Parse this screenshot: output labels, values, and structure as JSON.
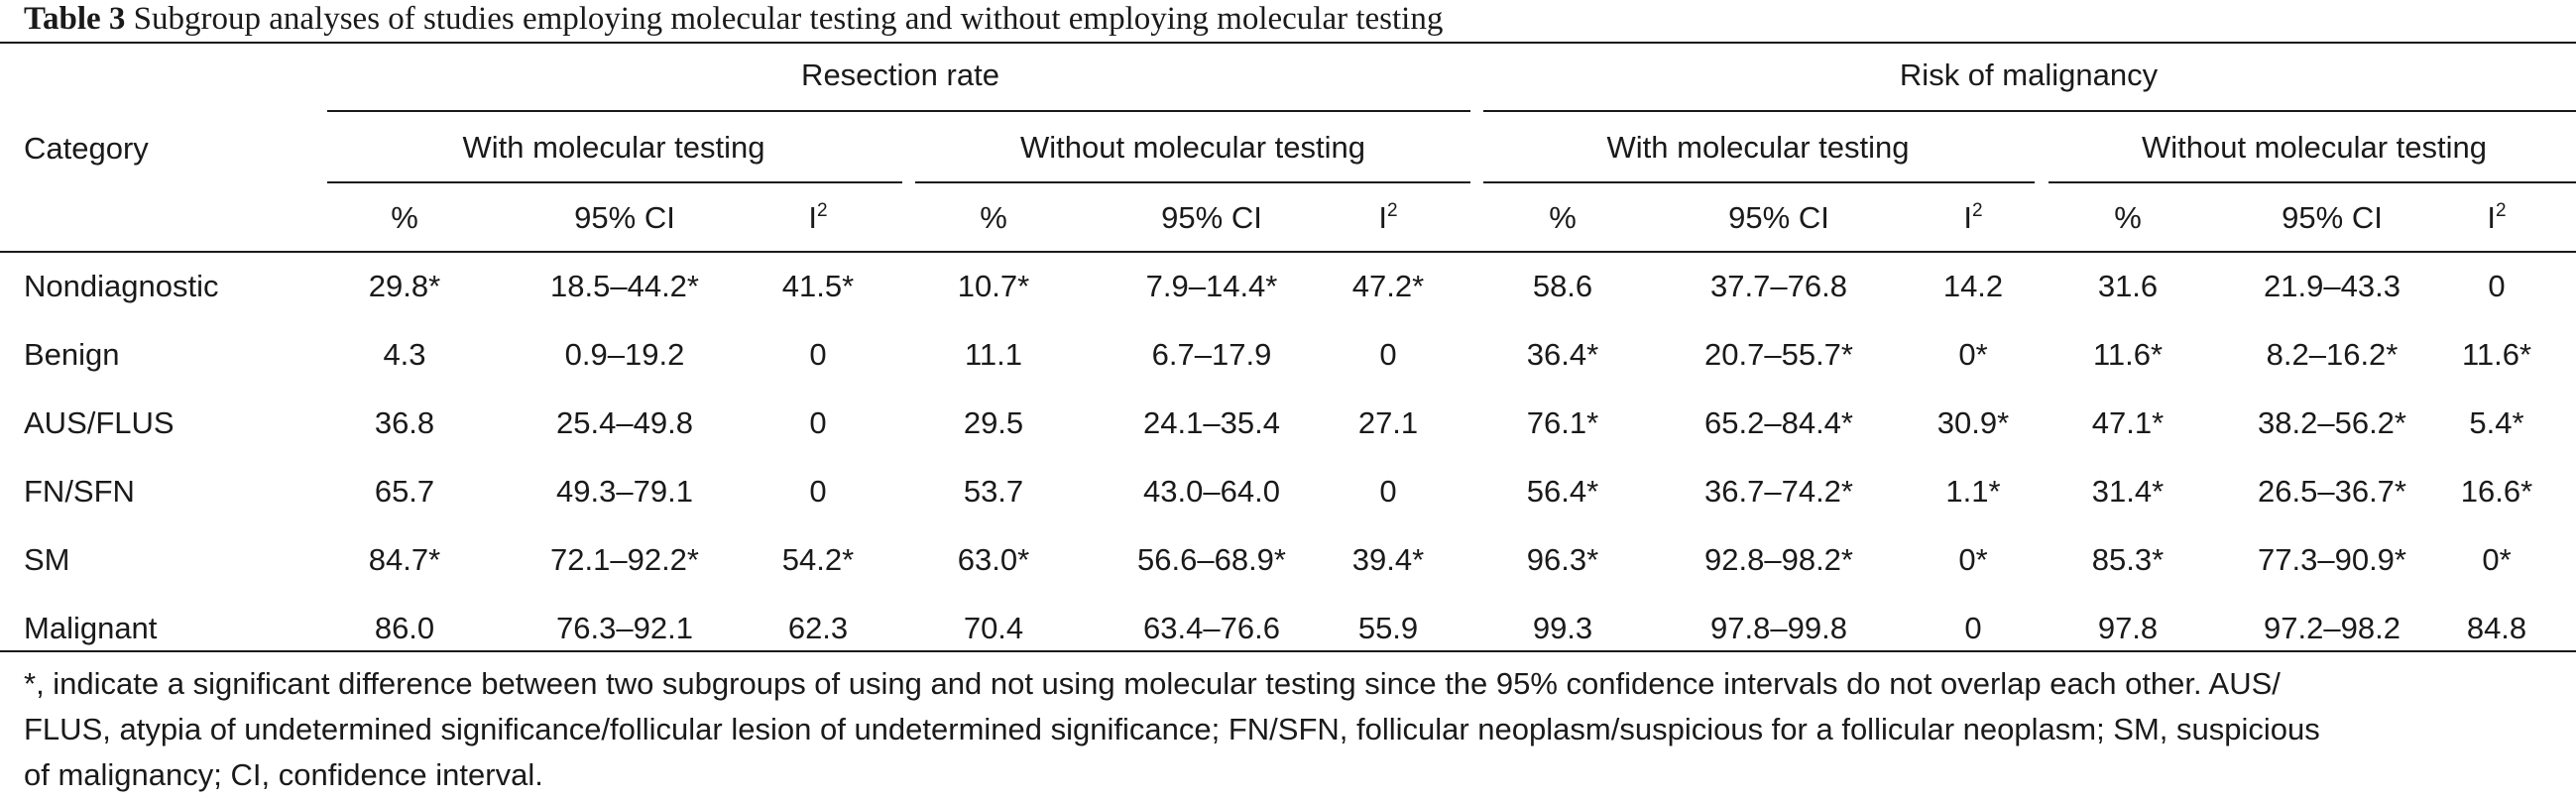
{
  "caption": {
    "label": "Table 3",
    "text": "Subgroup analyses of studies employing molecular testing and without employing molecular testing"
  },
  "header": {
    "category": "Category",
    "groups": [
      "Resection rate",
      "Risk of malignancy"
    ],
    "subgroups": [
      "With molecular testing",
      "Without molecular testing",
      "With molecular testing",
      "Without molecular testing"
    ],
    "cols": [
      "%",
      "95% CI",
      "I",
      "%",
      "95% CI",
      "I",
      "%",
      "95% CI",
      "I",
      "%",
      "95% CI",
      "I"
    ],
    "i_sup": "2"
  },
  "rows": [
    {
      "category": "Nondiagnostic",
      "cells": [
        "29.8*",
        "18.5–44.2*",
        "41.5*",
        "10.7*",
        "7.9–14.4*",
        "47.2*",
        "58.6",
        "37.7–76.8",
        "14.2",
        "31.6",
        "21.9–43.3",
        "0"
      ]
    },
    {
      "category": "Benign",
      "cells": [
        "4.3",
        "0.9–19.2",
        "0",
        "11.1",
        "6.7–17.9",
        "0",
        "36.4*",
        "20.7–55.7*",
        "0*",
        "11.6*",
        "8.2–16.2*",
        "11.6*"
      ]
    },
    {
      "category": "AUS/FLUS",
      "cells": [
        "36.8",
        "25.4–49.8",
        "0",
        "29.5",
        "24.1–35.4",
        "27.1",
        "76.1*",
        "65.2–84.4*",
        "30.9*",
        "47.1*",
        "38.2–56.2*",
        "5.4*"
      ]
    },
    {
      "category": "FN/SFN",
      "cells": [
        "65.7",
        "49.3–79.1",
        "0",
        "53.7",
        "43.0–64.0",
        "0",
        "56.4*",
        "36.7–74.2*",
        "1.1*",
        "31.4*",
        "26.5–36.7*",
        "16.6*"
      ]
    },
    {
      "category": "SM",
      "cells": [
        "84.7*",
        "72.1–92.2*",
        "54.2*",
        "63.0*",
        "56.6–68.9*",
        "39.4*",
        "96.3*",
        "92.8–98.2*",
        "0*",
        "85.3*",
        "77.3–90.9*",
        "0*"
      ]
    },
    {
      "category": "Malignant",
      "cells": [
        "86.0",
        "76.3–92.1",
        "62.3",
        "70.4",
        "63.4–76.6",
        "55.9",
        "99.3",
        "97.8–99.8",
        "0",
        "97.8",
        "97.2–98.2",
        "84.8"
      ]
    }
  ],
  "footnote": "*, indicate a significant difference between two subgroups of using and not using molecular testing since the 95% confidence intervals do not overlap each other. AUS/\nFLUS, atypia of undetermined significance/follicular lesion of undetermined significance; FN/SFN, follicular neoplasm/suspicious for a follicular neoplasm; SM, suspicious\nof malignancy; CI, confidence interval."
}
